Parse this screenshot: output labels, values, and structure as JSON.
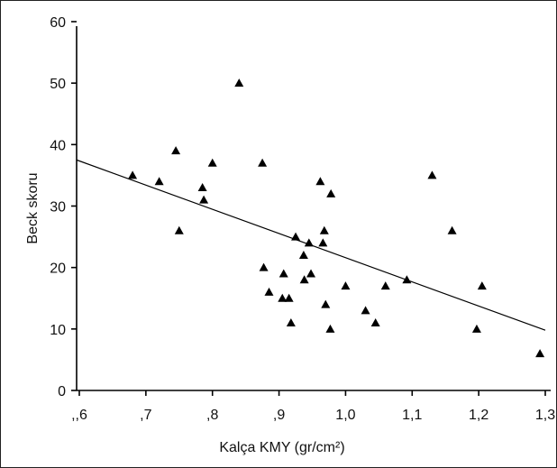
{
  "chart_data": {
    "type": "scatter",
    "title": "",
    "xlabel": "Kalça KMY (gr/cm²)",
    "ylabel": "Beck skoru",
    "xlim": [
      0.6,
      1.3
    ],
    "ylim": [
      0,
      60
    ],
    "x_tick_values": [
      0.6,
      0.7,
      0.8,
      0.9,
      1.0,
      1.1,
      1.2,
      1.3
    ],
    "x_tick_labels": [
      ",,6",
      ",7",
      ",8",
      ",9",
      "1,0",
      "1,1",
      "1,2",
      "1,3"
    ],
    "y_tick_values": [
      0,
      10,
      20,
      30,
      40,
      50,
      60
    ],
    "y_tick_labels": [
      "0",
      "10",
      "20",
      "30",
      "40",
      "50",
      "60"
    ],
    "grid": false,
    "legend": "none",
    "marker": "triangle",
    "marker_color": "#000000",
    "series": [
      {
        "x": [
          0.68,
          0.72,
          0.745,
          0.75,
          0.785,
          0.787,
          0.8,
          0.84,
          0.875,
          0.877,
          0.885,
          0.905,
          0.907,
          0.915,
          0.918,
          0.925,
          0.937,
          0.938,
          0.945,
          0.948,
          0.962,
          0.966,
          0.968,
          0.97,
          0.977,
          0.978,
          1.0,
          1.03,
          1.045,
          1.06,
          1.092,
          1.13,
          1.16,
          1.197,
          1.205,
          1.292
        ],
        "y": [
          35,
          34,
          39,
          26,
          33,
          31,
          37,
          50,
          37,
          20,
          16,
          15,
          19,
          15,
          11,
          25,
          22,
          18,
          24,
          19,
          34,
          24,
          26,
          14,
          10,
          32,
          17,
          13,
          11,
          17,
          18,
          35,
          26,
          10,
          17,
          6
        ]
      }
    ],
    "regression_line": {
      "x": [
        0.6,
        1.3
      ],
      "y": [
        37.5,
        9.8
      ]
    }
  }
}
